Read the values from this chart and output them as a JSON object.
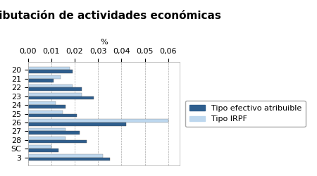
{
  "title": "Tributación de actividades económicas",
  "xlabel": "%",
  "categories": [
    "20",
    "21",
    "22",
    "23",
    "24",
    "25",
    "26",
    "27",
    "28",
    "SC",
    "3"
  ],
  "series1_label": "Tipo efectivo atribuible",
  "series2_label": "Tipo IRPF",
  "series1_color": "#2E5E8E",
  "series2_color": "#BDD7EE",
  "series1_values": [
    0.019,
    0.011,
    0.023,
    0.028,
    0.016,
    0.021,
    0.042,
    0.022,
    0.025,
    0.013,
    0.035
  ],
  "series2_values": [
    0.018,
    0.014,
    0.019,
    0.023,
    0.012,
    0.015,
    0.06,
    0.016,
    0.016,
    0.01,
    0.032
  ],
  "xlim": [
    0,
    0.065
  ],
  "xticks": [
    0.0,
    0.01,
    0.02,
    0.03,
    0.04,
    0.05,
    0.06
  ],
  "xtick_labels": [
    "0,00",
    "0,01",
    "0,02",
    "0,03",
    "0,04",
    "0,05",
    "0,06"
  ],
  "background_color": "#FFFFFF",
  "grid_color": "#AAAAAA",
  "title_fontsize": 11,
  "axis_fontsize": 8,
  "legend_fontsize": 8
}
